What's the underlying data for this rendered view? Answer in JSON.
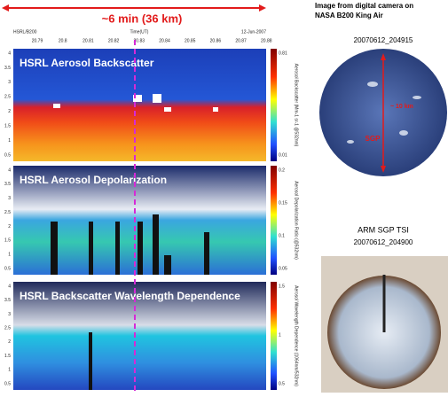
{
  "header": {
    "span": "~6 min (36 km)",
    "instrument": "HSRL/B200",
    "time_label": "Time(UT)",
    "date": "12-Jun-2007",
    "time_ticks": [
      "20.79",
      "20.8",
      "20.81",
      "20.82",
      "20.83",
      "20.84",
      "20.85",
      "20.86",
      "20.87",
      "20.88"
    ]
  },
  "panels": [
    {
      "title": "HSRL Aerosol Backscatter",
      "yticks": [
        "4",
        "3.5",
        "3",
        "2.5",
        "2",
        "1.5",
        "1",
        "0.5"
      ],
      "colorbar_label": "Aerosol Backscatter (Mm-1 sr-1 @532nm)",
      "colorbar_ticks": [
        "0.81",
        "0.01"
      ]
    },
    {
      "title": "HSRL Aerosol Depolarization",
      "yticks": [
        "4",
        "3.5",
        "3",
        "2.5",
        "2",
        "1.5",
        "1",
        "0.5"
      ],
      "colorbar_label": "Aerosol Depolarization Ratio (@532nm)",
      "colorbar_ticks": [
        "0.2",
        "0.15",
        "0.1",
        "0.05"
      ]
    },
    {
      "title": "HSRL Backscatter Wavelength Dependence",
      "yticks": [
        "4",
        "3.5",
        "3",
        "2.5",
        "2",
        "1.5",
        "1",
        "0.5"
      ],
      "colorbar_label": "Aerosol Wavelength Dependence (1064nm/532nm)",
      "colorbar_ticks": [
        "1.5",
        "1",
        "0.5"
      ]
    }
  ],
  "aircraft_image": {
    "caption": "Image from digital camera on NASA B200 King Air",
    "timestamp": "20070612_204915",
    "site": "SGP",
    "scale": "~ 10 km"
  },
  "tsi_image": {
    "caption": "ARM SGP TSI",
    "timestamp": "20070612_204900"
  }
}
